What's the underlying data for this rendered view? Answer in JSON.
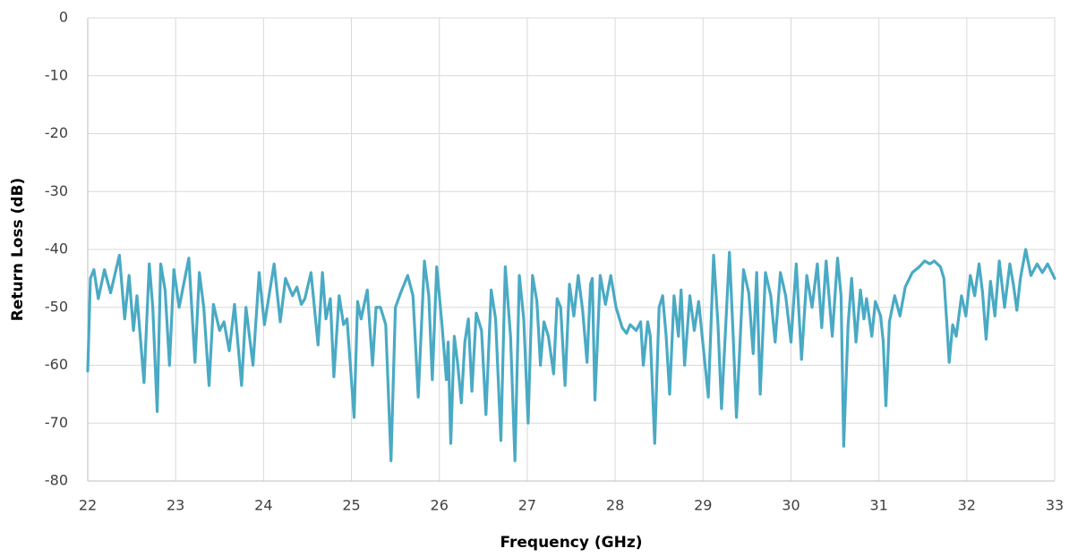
{
  "chart_data": {
    "type": "line",
    "xlabel": "Frequency (GHz)",
    "ylabel": "Return Loss (dB)",
    "xlim": [
      22,
      33
    ],
    "xticks": [
      22,
      23,
      24,
      25,
      26,
      27,
      28,
      29,
      30,
      31,
      32,
      33
    ],
    "ylim": [
      -80,
      0
    ],
    "yticks": [
      -80,
      -70,
      -60,
      -50,
      -40,
      -30,
      -20,
      -10,
      0
    ],
    "grid": true,
    "series": [
      {
        "color": "#4aaac4",
        "x": [
          22.0,
          22.03,
          22.07,
          22.12,
          22.19,
          22.26,
          22.36,
          22.42,
          22.47,
          22.52,
          22.56,
          22.64,
          22.7,
          22.74,
          22.79,
          22.83,
          22.88,
          22.93,
          22.98,
          23.04,
          23.15,
          23.22,
          23.27,
          23.32,
          23.38,
          23.43,
          23.5,
          23.55,
          23.61,
          23.67,
          23.75,
          23.8,
          23.84,
          23.88,
          23.95,
          24.01,
          24.12,
          24.19,
          24.25,
          24.33,
          24.38,
          24.43,
          24.47,
          24.54,
          24.62,
          24.67,
          24.71,
          24.76,
          24.8,
          24.86,
          24.91,
          24.95,
          25.03,
          25.07,
          25.11,
          25.18,
          25.24,
          25.28,
          25.33,
          25.39,
          25.45,
          25.5,
          25.56,
          25.64,
          25.7,
          25.76,
          25.83,
          25.88,
          25.92,
          25.97,
          26.03,
          26.08,
          26.1,
          26.13,
          26.17,
          26.21,
          26.25,
          26.29,
          26.33,
          26.37,
          26.42,
          26.48,
          26.53,
          26.59,
          26.64,
          26.7,
          26.75,
          26.81,
          26.86,
          26.91,
          26.96,
          27.01,
          27.06,
          27.11,
          27.15,
          27.19,
          27.24,
          27.3,
          27.34,
          27.38,
          27.43,
          27.48,
          27.53,
          27.58,
          27.63,
          27.68,
          27.72,
          27.74,
          27.77,
          27.83,
          27.89,
          27.95,
          28.01,
          28.08,
          28.13,
          28.17,
          28.24,
          28.29,
          28.32,
          28.37,
          28.4,
          28.45,
          28.5,
          28.54,
          28.58,
          28.62,
          28.67,
          28.72,
          28.75,
          28.79,
          28.85,
          28.9,
          28.95,
          29.01,
          29.06,
          29.12,
          29.17,
          29.21,
          29.3,
          29.34,
          29.38,
          29.46,
          29.52,
          29.57,
          29.61,
          29.65,
          29.71,
          29.77,
          29.82,
          29.88,
          29.94,
          30.0,
          30.06,
          30.12,
          30.18,
          30.24,
          30.3,
          30.35,
          30.4,
          30.47,
          30.53,
          30.57,
          30.6,
          30.65,
          30.69,
          30.74,
          30.79,
          30.83,
          30.86,
          30.92,
          30.96,
          31.02,
          31.05,
          31.08,
          31.12,
          31.18,
          31.24,
          31.3,
          31.38,
          31.46,
          31.52,
          31.58,
          31.63,
          31.7,
          31.74,
          31.77,
          31.8,
          31.84,
          31.88,
          31.94,
          31.99,
          32.04,
          32.09,
          32.14,
          32.18,
          32.22,
          32.27,
          32.32,
          32.37,
          32.43,
          32.49,
          32.53,
          32.57,
          32.61,
          32.67,
          32.73,
          32.8,
          32.86,
          32.92,
          33.0
        ],
        "values": [
          -61,
          -45,
          -43.5,
          -48.5,
          -43.5,
          -47.5,
          -41,
          -52,
          -44.5,
          -54,
          -48,
          -63,
          -42.5,
          -50,
          -68,
          -42.5,
          -47,
          -60,
          -43.5,
          -50,
          -41.5,
          -59.5,
          -44,
          -50,
          -63.5,
          -49.5,
          -54,
          -52.5,
          -57.5,
          -49.5,
          -63.5,
          -50,
          -55,
          -60,
          -44,
          -53,
          -42.5,
          -52.5,
          -45,
          -48,
          -46.5,
          -49.5,
          -48.5,
          -44,
          -56.5,
          -44,
          -52,
          -48.5,
          -62,
          -48,
          -53,
          -52,
          -69,
          -49,
          -52,
          -47,
          -60,
          -50,
          -50,
          -53,
          -76.5,
          -50,
          -47.5,
          -44.5,
          -48,
          -65.5,
          -42,
          -48,
          -62.5,
          -43,
          -53,
          -62.5,
          -56,
          -73.5,
          -55,
          -60,
          -66.5,
          -56,
          -52,
          -64.5,
          -51,
          -54,
          -68.5,
          -47,
          -52,
          -73,
          -43,
          -55,
          -76.5,
          -44.5,
          -52,
          -70,
          -44.5,
          -49,
          -60,
          -52.5,
          -55,
          -61.5,
          -48.5,
          -50,
          -63.5,
          -46,
          -51.5,
          -44.5,
          -50.5,
          -59.5,
          -46,
          -45,
          -66,
          -44.5,
          -49.5,
          -44.5,
          -50,
          -53.5,
          -54.5,
          -53,
          -54,
          -52.5,
          -60,
          -52.5,
          -55,
          -73.5,
          -50,
          -48,
          -55,
          -65,
          -48,
          -55,
          -47,
          -60,
          -48,
          -54,
          -49,
          -58,
          -65.5,
          -41,
          -53,
          -67.5,
          -40.5,
          -54,
          -69,
          -43.5,
          -47.5,
          -58,
          -44,
          -65,
          -44,
          -48,
          -56,
          -44,
          -48,
          -56,
          -42.5,
          -59,
          -44.5,
          -50,
          -42.5,
          -53.5,
          -42,
          -55,
          -41.5,
          -48,
          -74,
          -53,
          -45,
          -56,
          -47,
          -52,
          -48.5,
          -55,
          -49,
          -51.5,
          -56,
          -67,
          -52.5,
          -48,
          -51.5,
          -46.5,
          -44,
          -43,
          -42,
          -42.5,
          -42,
          -43,
          -45,
          -52,
          -59.5,
          -53,
          -55,
          -48,
          -51.5,
          -44.5,
          -48,
          -42.5,
          -47.5,
          -55.5,
          -45.5,
          -51.5,
          -42,
          -50,
          -42.5,
          -46,
          -50.5,
          -45,
          -40,
          -44.5,
          -42.5,
          -44,
          -42.5,
          -45
        ]
      }
    ]
  }
}
